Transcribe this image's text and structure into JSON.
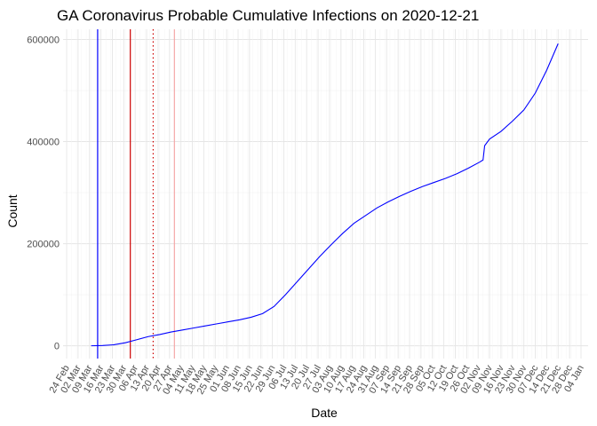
{
  "chart_data": {
    "type": "line",
    "title": "GA Coronavirus Probable Cumulative Infections on 2020-12-21",
    "xlabel": "Date",
    "ylabel": "Count",
    "grid": true,
    "x_start": "2020-02-24",
    "x_end": "2021-01-04",
    "ylim": [
      -25000,
      620000
    ],
    "y_ticks": [
      0,
      200000,
      400000,
      600000
    ],
    "y_tick_labels": [
      "0",
      "200000",
      "400000",
      "600000"
    ],
    "x_tick_labels": [
      "24 Feb",
      "02 Mar",
      "09 Mar",
      "16 Mar",
      "23 Mar",
      "30 Mar",
      "06 Apr",
      "13 Apr",
      "20 Apr",
      "27 Apr",
      "04 May",
      "11 May",
      "18 May",
      "25 May",
      "01 Jun",
      "08 Jun",
      "15 Jun",
      "22 Jun",
      "29 Jun",
      "06 Jul",
      "13 Jul",
      "20 Jul",
      "27 Jul",
      "03 Aug",
      "10 Aug",
      "17 Aug",
      "24 Aug",
      "31 Aug",
      "07 Sep",
      "14 Sep",
      "21 Sep",
      "28 Sep",
      "05 Oct",
      "12 Oct",
      "19 Oct",
      "26 Oct",
      "02 Nov",
      "09 Nov",
      "16 Nov",
      "23 Nov",
      "30 Nov",
      "07 Dec",
      "14 Dec",
      "21 Dec",
      "28 Dec",
      "04 Jan"
    ],
    "reference_lines": [
      {
        "date": "2020-03-14",
        "color": "#0000ff",
        "style": "solid"
      },
      {
        "date": "2020-04-03",
        "color": "#cc0000",
        "style": "solid"
      },
      {
        "date": "2020-04-17",
        "color": "#cc0000",
        "style": "dotted"
      },
      {
        "date": "2020-04-30",
        "color": "#f4a6a6",
        "style": "solid"
      }
    ],
    "series": [
      {
        "name": "Probable cumulative infections",
        "color": "#0000ff",
        "points": [
          [
            "2020-03-10",
            0
          ],
          [
            "2020-03-17",
            500
          ],
          [
            "2020-03-24",
            2000
          ],
          [
            "2020-03-31",
            6000
          ],
          [
            "2020-04-07",
            12000
          ],
          [
            "2020-04-14",
            18000
          ],
          [
            "2020-04-21",
            22000
          ],
          [
            "2020-04-28",
            27000
          ],
          [
            "2020-05-05",
            31000
          ],
          [
            "2020-05-12",
            35000
          ],
          [
            "2020-05-19",
            39000
          ],
          [
            "2020-05-26",
            43000
          ],
          [
            "2020-06-02",
            47000
          ],
          [
            "2020-06-09",
            51000
          ],
          [
            "2020-06-16",
            56000
          ],
          [
            "2020-06-23",
            63000
          ],
          [
            "2020-06-30",
            77000
          ],
          [
            "2020-07-07",
            100000
          ],
          [
            "2020-07-14",
            125000
          ],
          [
            "2020-07-21",
            150000
          ],
          [
            "2020-07-28",
            175000
          ],
          [
            "2020-08-04",
            198000
          ],
          [
            "2020-08-11",
            220000
          ],
          [
            "2020-08-18",
            240000
          ],
          [
            "2020-08-25",
            255000
          ],
          [
            "2020-09-01",
            270000
          ],
          [
            "2020-09-08",
            282000
          ],
          [
            "2020-09-15",
            293000
          ],
          [
            "2020-09-22",
            303000
          ],
          [
            "2020-09-29",
            312000
          ],
          [
            "2020-10-06",
            320000
          ],
          [
            "2020-10-13",
            328000
          ],
          [
            "2020-10-20",
            337000
          ],
          [
            "2020-10-27",
            348000
          ],
          [
            "2020-11-03",
            360000
          ],
          [
            "2020-11-05",
            364000
          ],
          [
            "2020-11-06",
            392000
          ],
          [
            "2020-11-09",
            405000
          ],
          [
            "2020-11-16",
            420000
          ],
          [
            "2020-11-23",
            440000
          ],
          [
            "2020-11-30",
            462000
          ],
          [
            "2020-12-07",
            495000
          ],
          [
            "2020-12-14",
            540000
          ],
          [
            "2020-12-21",
            592000
          ]
        ]
      }
    ]
  }
}
